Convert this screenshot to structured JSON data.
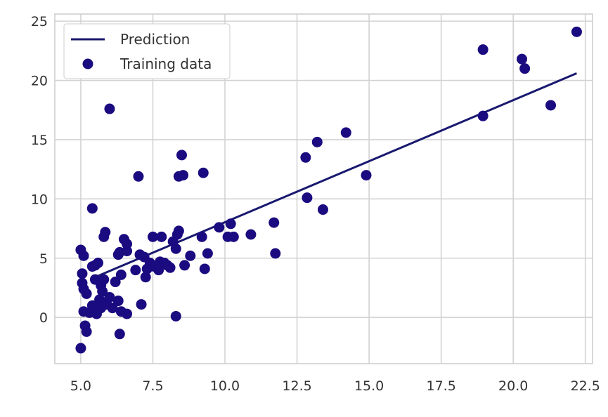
{
  "chart_data": {
    "type": "scatter",
    "xlim": [
      4.1,
      22.75
    ],
    "ylim": [
      -3.9,
      25.6
    ],
    "xticks": [
      5.0,
      7.5,
      10.0,
      12.5,
      15.0,
      17.5,
      20.0,
      22.5
    ],
    "yticks": [
      0,
      5,
      10,
      15,
      20,
      25
    ],
    "xtick_labels": [
      "5.0",
      "7.5",
      "10.0",
      "12.5",
      "15.0",
      "17.5",
      "20.0",
      "22.5"
    ],
    "ytick_labels": [
      "0",
      "5",
      "10",
      "15",
      "20",
      "25"
    ],
    "grid": true,
    "legend": {
      "position": "top-left",
      "entries": [
        {
          "label": "Prediction",
          "marker": "line",
          "color": "#191970"
        },
        {
          "label": "Training data",
          "marker": "circle",
          "color": "#1a0b80"
        }
      ]
    },
    "series": [
      {
        "name": "Prediction",
        "type": "line",
        "color": "#191970",
        "points": [
          [
            5.4,
            3.3
          ],
          [
            22.2,
            20.6
          ]
        ]
      },
      {
        "name": "Training data",
        "type": "scatter",
        "color": "#1a0b80",
        "points": [
          [
            5.0,
            5.7
          ],
          [
            5.1,
            5.2
          ],
          [
            5.05,
            3.7
          ],
          [
            5.05,
            2.9
          ],
          [
            5.1,
            2.4
          ],
          [
            5.0,
            -2.6
          ],
          [
            5.2,
            2.0
          ],
          [
            5.1,
            0.5
          ],
          [
            5.15,
            -0.7
          ],
          [
            5.2,
            -1.2
          ],
          [
            5.3,
            0.4
          ],
          [
            5.4,
            4.3
          ],
          [
            5.5,
            4.4
          ],
          [
            5.4,
            9.2
          ],
          [
            5.5,
            3.2
          ],
          [
            5.6,
            4.6
          ],
          [
            5.4,
            1.0
          ],
          [
            5.5,
            0.6
          ],
          [
            5.55,
            0.3
          ],
          [
            5.65,
            1.5
          ],
          [
            5.7,
            2.7
          ],
          [
            5.75,
            2.2
          ],
          [
            5.8,
            3.2
          ],
          [
            5.7,
            0.8
          ],
          [
            5.9,
            1.1
          ],
          [
            5.85,
            7.2
          ],
          [
            5.8,
            6.8
          ],
          [
            6.0,
            17.6
          ],
          [
            6.0,
            1.7
          ],
          [
            6.1,
            0.8
          ],
          [
            6.2,
            3.0
          ],
          [
            6.3,
            5.3
          ],
          [
            6.35,
            5.5
          ],
          [
            6.3,
            1.4
          ],
          [
            6.4,
            0.5
          ],
          [
            6.35,
            -1.4
          ],
          [
            6.4,
            3.6
          ],
          [
            6.5,
            6.6
          ],
          [
            6.6,
            6.2
          ],
          [
            6.6,
            5.6
          ],
          [
            6.6,
            0.3
          ],
          [
            6.9,
            4.0
          ],
          [
            7.0,
            11.9
          ],
          [
            7.05,
            5.3
          ],
          [
            7.1,
            1.1
          ],
          [
            7.2,
            5.1
          ],
          [
            7.25,
            3.4
          ],
          [
            7.3,
            4.1
          ],
          [
            7.4,
            4.6
          ],
          [
            7.5,
            6.8
          ],
          [
            7.55,
            4.3
          ],
          [
            7.7,
            4.0
          ],
          [
            7.75,
            4.7
          ],
          [
            7.8,
            6.8
          ],
          [
            7.9,
            4.6
          ],
          [
            8.0,
            4.4
          ],
          [
            8.1,
            4.2
          ],
          [
            8.2,
            6.4
          ],
          [
            8.3,
            5.8
          ],
          [
            8.35,
            7.0
          ],
          [
            8.4,
            7.3
          ],
          [
            8.3,
            0.1
          ],
          [
            8.4,
            11.9
          ],
          [
            8.5,
            13.7
          ],
          [
            8.55,
            12.0
          ],
          [
            8.6,
            4.4
          ],
          [
            8.8,
            5.2
          ],
          [
            9.2,
            6.8
          ],
          [
            9.25,
            12.2
          ],
          [
            9.3,
            4.1
          ],
          [
            9.4,
            5.4
          ],
          [
            9.8,
            7.6
          ],
          [
            10.1,
            6.8
          ],
          [
            10.2,
            7.9
          ],
          [
            10.3,
            6.8
          ],
          [
            10.9,
            7.0
          ],
          [
            11.7,
            8.0
          ],
          [
            11.75,
            5.4
          ],
          [
            12.8,
            13.5
          ],
          [
            12.85,
            10.1
          ],
          [
            13.2,
            14.8
          ],
          [
            13.4,
            9.1
          ],
          [
            14.2,
            15.6
          ],
          [
            14.9,
            12.0
          ],
          [
            18.95,
            22.6
          ],
          [
            18.95,
            17.0
          ],
          [
            20.3,
            21.8
          ],
          [
            20.4,
            21.0
          ],
          [
            21.3,
            17.9
          ],
          [
            22.2,
            24.1
          ]
        ]
      }
    ]
  }
}
